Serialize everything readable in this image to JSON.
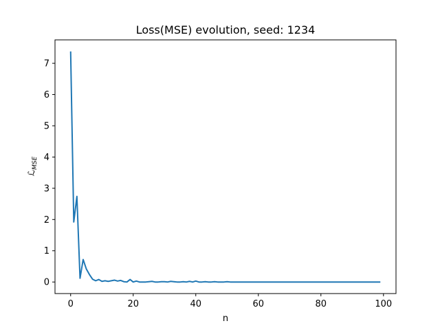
{
  "chart_data": {
    "type": "line",
    "title": "Loss(MSE) evolution, seed: 1234",
    "xlabel": "n",
    "ylabel": "ℒ",
    "ylabel_sub": "MSE",
    "xlim": [
      -5,
      104
    ],
    "ylim": [
      -0.37,
      7.75
    ],
    "xticks": [
      0,
      20,
      40,
      60,
      80,
      100
    ],
    "yticks": [
      0,
      1,
      2,
      3,
      4,
      5,
      6,
      7
    ],
    "grid": false,
    "series": [
      {
        "color": "#1f77b4",
        "x": [
          0,
          1,
          2,
          3,
          4,
          5,
          6,
          7,
          8,
          9,
          10,
          11,
          12,
          13,
          14,
          15,
          16,
          17,
          18,
          19,
          20,
          21,
          22,
          23,
          24,
          25,
          26,
          27,
          28,
          29,
          30,
          31,
          32,
          33,
          34,
          35,
          36,
          37,
          38,
          39,
          40,
          41,
          42,
          43,
          44,
          45,
          46,
          47,
          48,
          49,
          50,
          51,
          52,
          53,
          54,
          55,
          56,
          57,
          58,
          59,
          60,
          61,
          62,
          63,
          64,
          65,
          66,
          67,
          68,
          69,
          70,
          71,
          72,
          73,
          74,
          75,
          76,
          77,
          78,
          79,
          80,
          81,
          82,
          83,
          84,
          85,
          86,
          87,
          88,
          89,
          90,
          91,
          92,
          93,
          94,
          95,
          96,
          97,
          98,
          99
        ],
        "values": [
          7.38,
          1.92,
          2.74,
          0.12,
          0.72,
          0.42,
          0.24,
          0.09,
          0.04,
          0.08,
          0.02,
          0.04,
          0.02,
          0.04,
          0.06,
          0.03,
          0.05,
          0.01,
          0.0,
          0.08,
          0.0,
          0.03,
          0.0,
          0.0,
          0.0,
          0.01,
          0.02,
          0.0,
          0.0,
          0.01,
          0.01,
          0.0,
          0.02,
          0.01,
          0.0,
          0.0,
          0.01,
          0.0,
          0.02,
          0.0,
          0.03,
          0.0,
          0.0,
          0.01,
          0.0,
          0.0,
          0.01,
          0.0,
          0.0,
          0.0,
          0.01,
          0.0,
          0.0,
          0.0,
          0.0,
          0.0,
          0.0,
          0.0,
          0.0,
          0.0,
          0.0,
          0.0,
          0.0,
          0.0,
          0.0,
          0.0,
          0.0,
          0.0,
          0.0,
          0.0,
          0.0,
          0.0,
          0.0,
          0.0,
          0.0,
          0.0,
          0.0,
          0.0,
          0.0,
          0.0,
          0.0,
          0.0,
          0.0,
          0.0,
          0.0,
          0.0,
          0.0,
          0.0,
          0.0,
          0.0,
          0.0,
          0.0,
          0.0,
          0.0,
          0.0,
          0.0,
          0.0,
          0.0,
          0.0,
          0.0
        ]
      }
    ]
  }
}
